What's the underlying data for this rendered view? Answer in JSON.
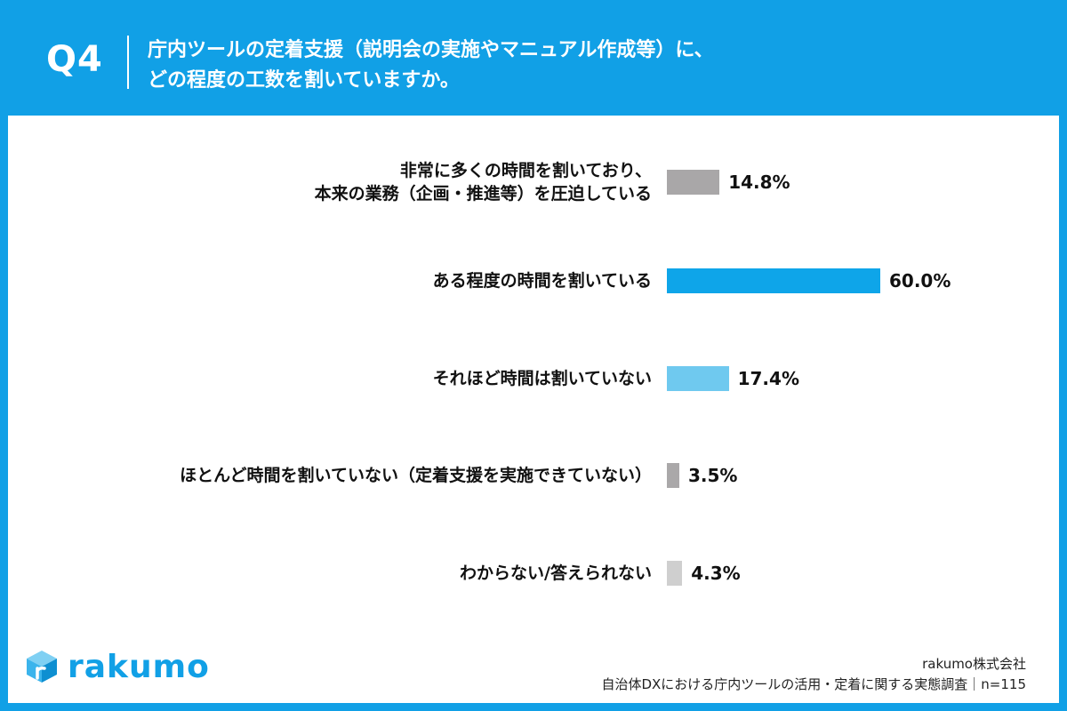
{
  "header": {
    "q_number": "Q4",
    "question_line1": "庁内ツールの定着支援（説明会の実施やマニュアル作成等）に、",
    "question_line2": "どの程度の工数を割いていますか。"
  },
  "chart_data": {
    "type": "bar",
    "orientation": "horizontal",
    "xlim": [
      0,
      100
    ],
    "categories": [
      [
        "非常に多くの時間を割いており、",
        "本来の業務（企画・推進等）を圧迫している"
      ],
      [
        "ある程度の時間を割いている"
      ],
      [
        "それほど時間は割いていない"
      ],
      [
        "ほとんど時間を割いていない（定着支援を実施できていない）"
      ],
      [
        "わからない/答えられない"
      ]
    ],
    "values": [
      14.8,
      60.0,
      17.4,
      3.5,
      4.3
    ],
    "value_labels": [
      "14.8%",
      "60.0%",
      "17.4%",
      "3.5%",
      "4.3%"
    ],
    "bar_colors": [
      "#a9a7a8",
      "#0ea5e9",
      "#6fc9ef",
      "#aaa8a9",
      "#cfcfcf"
    ]
  },
  "branding": {
    "logo_text": "rakumo",
    "logo_color": "#11a0e6"
  },
  "footer": {
    "company": "rakumo株式会社",
    "survey": "自治体DXにおける庁内ツールの活用・定着に関する実態調査｜n=115"
  }
}
